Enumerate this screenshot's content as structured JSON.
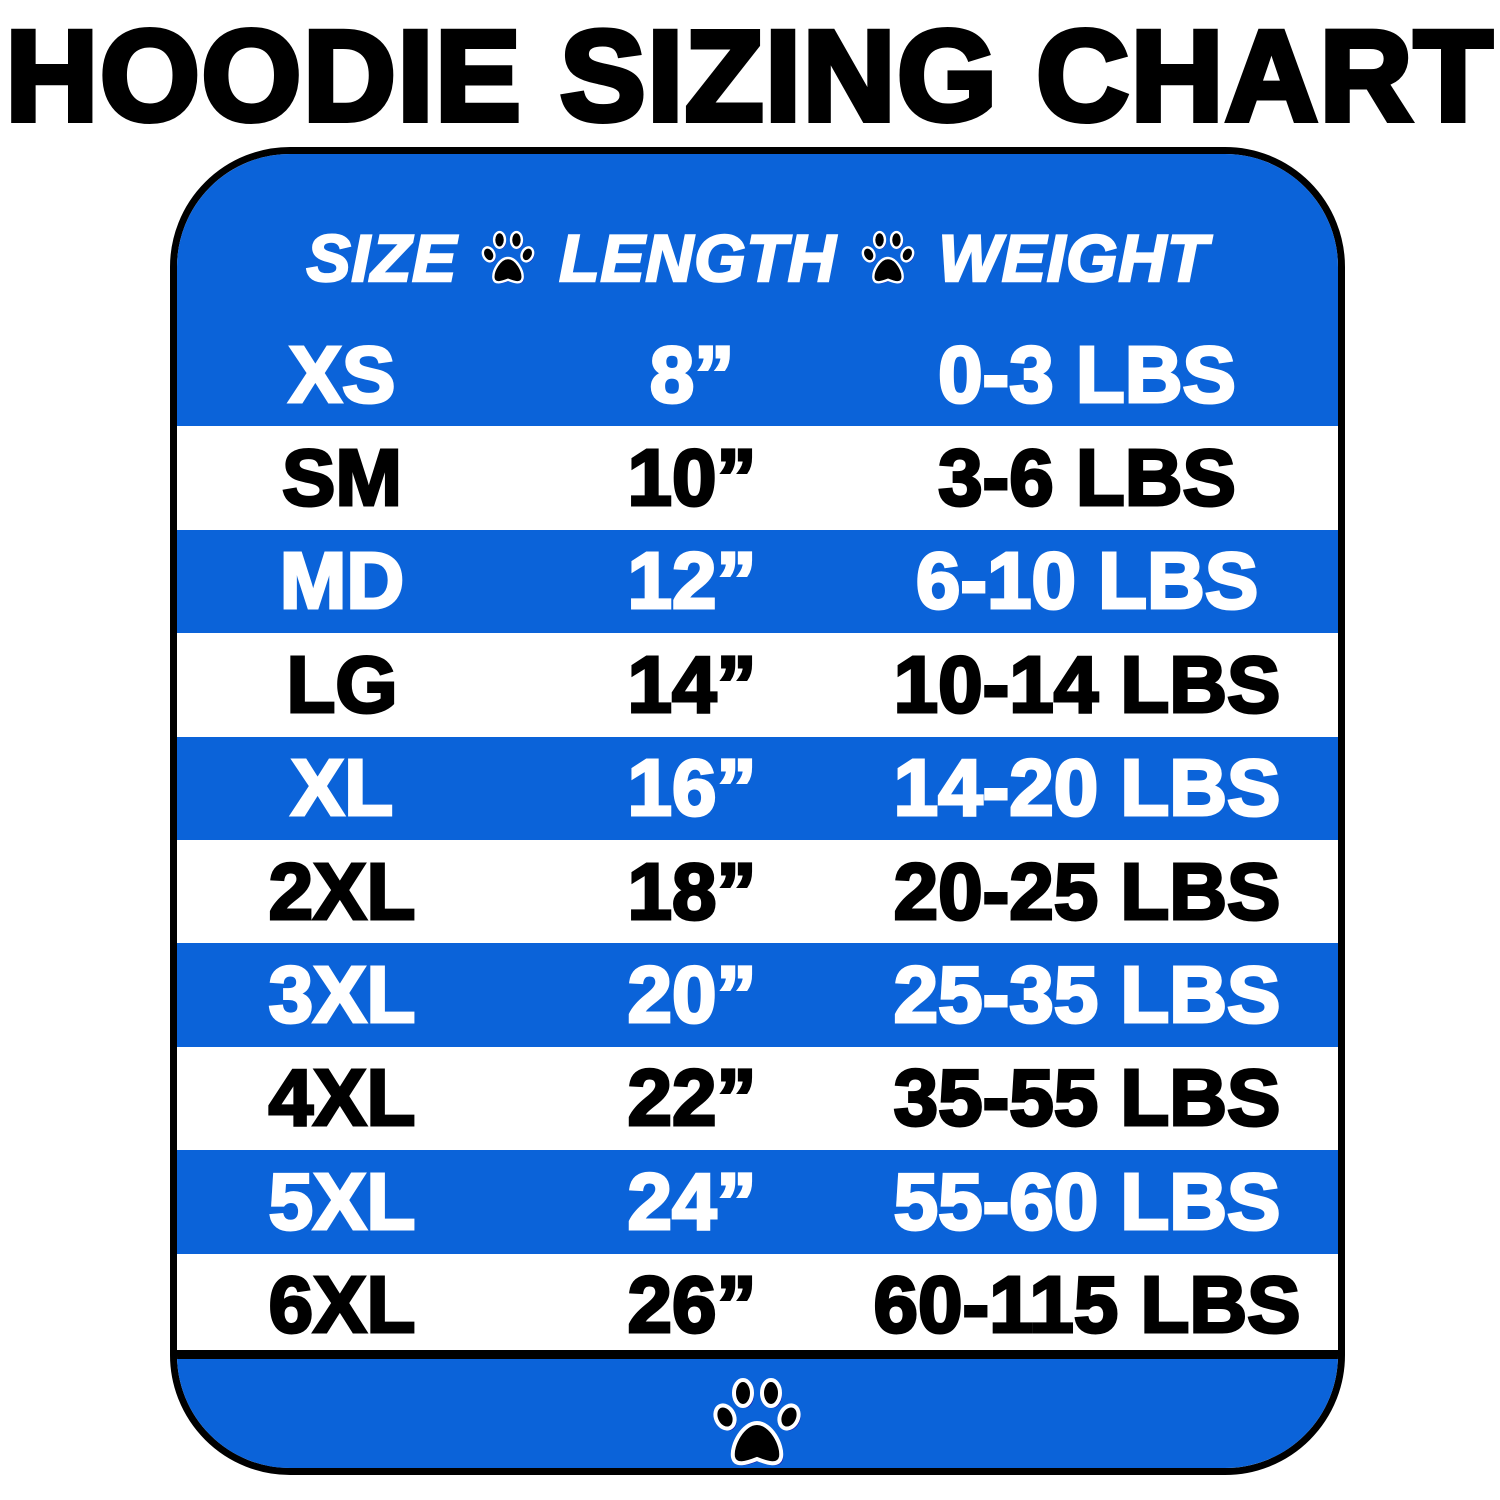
{
  "title": "HOODIE SIZING CHART",
  "colors": {
    "blue": "#0b63d9",
    "border": "#000000",
    "text_on_blue": "#ffffff",
    "text_on_white": "#000000"
  },
  "header": {
    "columns": [
      "SIZE",
      "LENGTH",
      "WEIGHT"
    ],
    "separator_icon": "paw-print-icon"
  },
  "rows": [
    {
      "size": "XS",
      "length": "8”",
      "weight": "0-3 LBS"
    },
    {
      "size": "SM",
      "length": "10”",
      "weight": "3-6 LBS"
    },
    {
      "size": "MD",
      "length": "12”",
      "weight": "6-10 LBS"
    },
    {
      "size": "LG",
      "length": "14”",
      "weight": "10-14 LBS"
    },
    {
      "size": "XL",
      "length": "16”",
      "weight": "14-20 LBS"
    },
    {
      "size": "2XL",
      "length": "18”",
      "weight": "20-25 LBS"
    },
    {
      "size": "3XL",
      "length": "20”",
      "weight": "25-35 LBS"
    },
    {
      "size": "4XL",
      "length": "22”",
      "weight": "35-55 LBS"
    },
    {
      "size": "5XL",
      "length": "24”",
      "weight": "55-60 LBS"
    },
    {
      "size": "6XL",
      "length": "26”",
      "weight": "60-115 LBS"
    }
  ],
  "footer": {
    "icon": "paw-print-icon"
  }
}
